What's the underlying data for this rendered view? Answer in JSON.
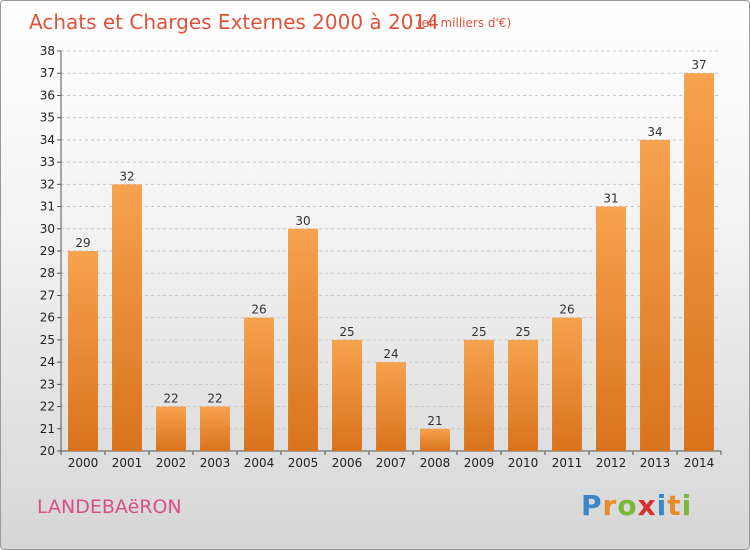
{
  "title": "Achats et Charges Externes 2000 à 2014",
  "unit": "(en milliers d'€)",
  "commune": "LANDEBAëRON",
  "logo": {
    "letters": [
      "P",
      "r",
      "o",
      "x",
      "i",
      "t",
      "i"
    ],
    "colors": [
      "#3a86c8",
      "#e98b2a",
      "#7ab83a",
      "#d93030",
      "#3a86c8",
      "#e98b2a",
      "#7ab83a"
    ]
  },
  "colors": {
    "bar_top": "#f6a24e",
    "bar_bottom": "#d9731c",
    "grid": "#c8c8c8",
    "title": "#e0533a"
  },
  "chart_data": {
    "type": "bar",
    "categories": [
      "2000",
      "2001",
      "2002",
      "2003",
      "2004",
      "2005",
      "2006",
      "2007",
      "2008",
      "2009",
      "2010",
      "2011",
      "2012",
      "2013",
      "2014"
    ],
    "values": [
      29,
      32,
      22,
      22,
      26,
      30,
      25,
      24,
      21,
      25,
      25,
      26,
      31,
      34,
      37
    ],
    "ylim": [
      20,
      38
    ],
    "yticks": [
      20,
      21,
      22,
      23,
      24,
      25,
      26,
      27,
      28,
      29,
      30,
      31,
      32,
      33,
      34,
      35,
      36,
      37,
      38
    ],
    "grid": true,
    "title": "Achats et Charges Externes 2000 à 2014",
    "xlabel": "",
    "ylabel": ""
  }
}
